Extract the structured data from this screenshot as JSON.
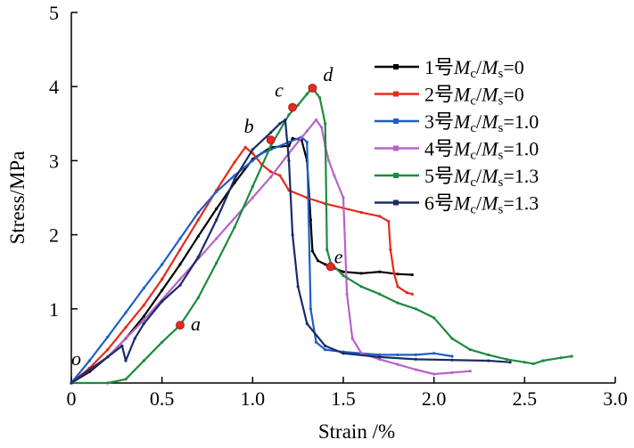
{
  "chart_data": {
    "type": "line",
    "xlabel": "Strain /%",
    "ylabel": "Stress/MPa",
    "xlim": [
      0,
      3.0
    ],
    "ylim": [
      0,
      5
    ],
    "xticks": [
      "0",
      "0.5",
      "1.0",
      "1.5",
      "2.0",
      "2.5",
      "3.0"
    ],
    "yticks": [
      "1",
      "2",
      "3",
      "4",
      "5"
    ],
    "origin_label": "o",
    "legend_position": "top-right",
    "series": [
      {
        "name": "1号Mc/Ms=0",
        "legend": {
          "num": "1号",
          "lhs": "M",
          "lhs_sub": "c",
          "rhs": "M",
          "rhs_sub": "s",
          "val": "=0"
        },
        "color": "#000000",
        "x": [
          0,
          0.1,
          0.2,
          0.3,
          0.4,
          0.5,
          0.6,
          0.7,
          0.8,
          0.9,
          1.0,
          1.1,
          1.2,
          1.22,
          1.27,
          1.3,
          1.32,
          1.33,
          1.36,
          1.4,
          1.45,
          1.5,
          1.6,
          1.7,
          1.8,
          1.88
        ],
        "y": [
          0,
          0.15,
          0.35,
          0.6,
          0.9,
          1.25,
          1.6,
          1.98,
          2.35,
          2.7,
          3.02,
          3.18,
          3.2,
          3.3,
          3.28,
          3.0,
          2.2,
          1.78,
          1.65,
          1.6,
          1.55,
          1.5,
          1.48,
          1.5,
          1.47,
          1.46
        ]
      },
      {
        "name": "2号Mc/Ms=0",
        "legend": {
          "num": "2号",
          "lhs": "M",
          "lhs_sub": "c",
          "rhs": "M",
          "rhs_sub": "s",
          "val": "=0"
        },
        "color": "#e8291c",
        "x": [
          0,
          0.1,
          0.2,
          0.3,
          0.4,
          0.5,
          0.6,
          0.7,
          0.8,
          0.9,
          0.96,
          1.0,
          1.05,
          1.1,
          1.15,
          1.2,
          1.3,
          1.4,
          1.5,
          1.6,
          1.7,
          1.75,
          1.76,
          1.78,
          1.8,
          1.85,
          1.88
        ],
        "y": [
          0,
          0.2,
          0.45,
          0.75,
          1.05,
          1.4,
          1.8,
          2.2,
          2.6,
          2.98,
          3.18,
          3.1,
          2.95,
          2.85,
          2.8,
          2.6,
          2.5,
          2.42,
          2.36,
          2.3,
          2.25,
          2.18,
          1.8,
          1.48,
          1.3,
          1.22,
          1.2
        ]
      },
      {
        "name": "3号Mc/Ms=1.0",
        "legend": {
          "num": "3号",
          "lhs": "M",
          "lhs_sub": "c",
          "rhs": "M",
          "rhs_sub": "s",
          "val": "=1.0"
        },
        "color": "#1f5fc4",
        "x": [
          0,
          0.1,
          0.2,
          0.3,
          0.4,
          0.5,
          0.6,
          0.7,
          0.8,
          0.9,
          1.0,
          1.05,
          1.1,
          1.2,
          1.27,
          1.3,
          1.32,
          1.35,
          1.4,
          1.5,
          1.6,
          1.7,
          1.8,
          1.9,
          2.0,
          2.1
        ],
        "y": [
          0,
          0.3,
          0.62,
          0.95,
          1.28,
          1.6,
          1.95,
          2.3,
          2.58,
          2.8,
          3.0,
          3.1,
          3.15,
          3.25,
          3.32,
          3.25,
          1.0,
          0.55,
          0.45,
          0.42,
          0.4,
          0.38,
          0.38,
          0.38,
          0.4,
          0.36
        ]
      },
      {
        "name": "4号Mc/Ms=1.0",
        "legend": {
          "num": "4号",
          "lhs": "M",
          "lhs_sub": "c",
          "rhs": "M",
          "rhs_sub": "s",
          "val": "=1.0"
        },
        "color": "#b763c6",
        "x": [
          0,
          0.2,
          0.4,
          0.6,
          0.8,
          1.0,
          1.1,
          1.2,
          1.3,
          1.35,
          1.38,
          1.4,
          1.42,
          1.45,
          1.5,
          1.52,
          1.55,
          1.6,
          1.7,
          1.8,
          1.9,
          2.0,
          2.1,
          2.2
        ],
        "y": [
          0,
          0.35,
          0.85,
          1.4,
          1.95,
          2.5,
          2.78,
          3.1,
          3.4,
          3.55,
          3.45,
          3.2,
          3.0,
          2.8,
          2.5,
          1.2,
          0.6,
          0.4,
          0.32,
          0.25,
          0.18,
          0.12,
          0.14,
          0.16
        ]
      },
      {
        "name": "5号Mc/Ms=1.3",
        "legend": {
          "num": "5号",
          "lhs": "M",
          "lhs_sub": "c",
          "rhs": "M",
          "rhs_sub": "s",
          "val": "=1.3"
        },
        "color": "#1e8a3c",
        "x": [
          0,
          0.2,
          0.3,
          0.4,
          0.5,
          0.6,
          0.7,
          0.8,
          0.9,
          1.0,
          1.1,
          1.2,
          1.25,
          1.3,
          1.33,
          1.37,
          1.4,
          1.41,
          1.43,
          1.5,
          1.6,
          1.7,
          1.8,
          1.9,
          2.0,
          2.1,
          2.2,
          2.3,
          2.4,
          2.5,
          2.55,
          2.6,
          2.7,
          2.76
        ],
        "y": [
          0,
          0.0,
          0.05,
          0.3,
          0.55,
          0.78,
          1.15,
          1.62,
          2.1,
          2.65,
          3.2,
          3.62,
          3.75,
          3.9,
          3.98,
          3.85,
          3.5,
          1.8,
          1.62,
          1.45,
          1.3,
          1.2,
          1.08,
          1.0,
          0.88,
          0.6,
          0.45,
          0.38,
          0.32,
          0.28,
          0.26,
          0.3,
          0.34,
          0.36
        ]
      },
      {
        "name": "6号Mc/Ms=1.3",
        "legend": {
          "num": "6号",
          "lhs": "M",
          "lhs_sub": "c",
          "rhs": "M",
          "rhs_sub": "s",
          "val": "=1.3"
        },
        "color": "#1b2a6b",
        "x": [
          0,
          0.1,
          0.2,
          0.28,
          0.3,
          0.35,
          0.4,
          0.5,
          0.6,
          0.7,
          0.8,
          0.9,
          1.0,
          1.1,
          1.15,
          1.18,
          1.2,
          1.22,
          1.25,
          1.3,
          1.4,
          1.5,
          1.7,
          1.9,
          2.1,
          2.3,
          2.42
        ],
        "y": [
          0,
          0.18,
          0.35,
          0.5,
          0.3,
          0.6,
          0.8,
          1.1,
          1.32,
          1.7,
          2.2,
          2.75,
          3.15,
          3.38,
          3.5,
          3.55,
          3.0,
          2.0,
          1.3,
          0.8,
          0.5,
          0.4,
          0.35,
          0.32,
          0.31,
          0.3,
          0.28
        ]
      }
    ],
    "annotations": [
      {
        "label": "a",
        "x": 0.6,
        "y": 0.78
      },
      {
        "label": "b",
        "x": 1.1,
        "y": 3.28
      },
      {
        "label": "c",
        "x": 1.22,
        "y": 3.72
      },
      {
        "label": "d",
        "x": 1.33,
        "y": 3.98
      },
      {
        "label": "e",
        "x": 1.43,
        "y": 1.57
      }
    ],
    "annotation_color": "#e8291c"
  }
}
